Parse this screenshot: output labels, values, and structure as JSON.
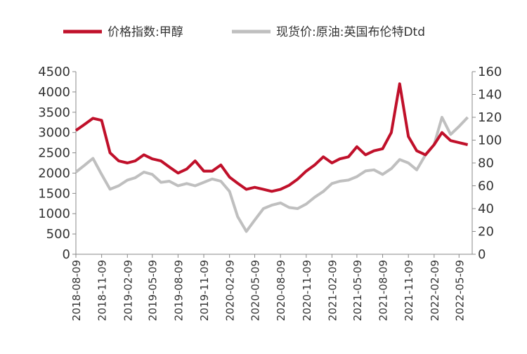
{
  "chart_data": {
    "type": "line",
    "series_names_note_free": null,
    "x": [
      "2018-08-09",
      "2018-09-09",
      "2018-10-09",
      "2018-11-09",
      "2018-12-09",
      "2019-01-09",
      "2019-02-09",
      "2019-03-09",
      "2019-04-09",
      "2019-05-09",
      "2019-06-09",
      "2019-07-09",
      "2019-08-09",
      "2019-09-09",
      "2019-10-09",
      "2019-11-09",
      "2019-12-09",
      "2020-01-09",
      "2020-02-09",
      "2020-03-09",
      "2020-04-09",
      "2020-05-09",
      "2020-06-09",
      "2020-07-09",
      "2020-08-09",
      "2020-09-09",
      "2020-10-09",
      "2020-11-09",
      "2020-12-09",
      "2021-01-09",
      "2021-02-09",
      "2021-03-09",
      "2021-04-09",
      "2021-05-09",
      "2021-06-09",
      "2021-07-09",
      "2021-08-09",
      "2021-09-09",
      "2021-10-09",
      "2021-11-09",
      "2021-12-09",
      "2022-01-09",
      "2022-02-09",
      "2022-03-09",
      "2022-04-09",
      "2022-05-09",
      "2022-06-09"
    ],
    "series": [
      {
        "name": "价格指数:甲醇",
        "color": "#c0102a",
        "axis": "y",
        "values": [
          3050,
          3200,
          3350,
          3300,
          2500,
          2300,
          2250,
          2300,
          2450,
          2350,
          2300,
          2150,
          2000,
          2100,
          2300,
          2050,
          2050,
          2200,
          1900,
          1750,
          1600,
          1650,
          1600,
          1550,
          1600,
          1700,
          1850,
          2050,
          2200,
          2400,
          2250,
          2350,
          2400,
          2650,
          2450,
          2550,
          2600,
          3000,
          4200,
          2900,
          2550,
          2450,
          2700,
          3000,
          2800,
          2750,
          2700
        ]
      },
      {
        "name": "现货价:原油:英国布伦特Dtd",
        "color": "#bfbfbf",
        "axis": "y2",
        "values": [
          72,
          78,
          84,
          70,
          57,
          60,
          65,
          67,
          72,
          70,
          63,
          64,
          60,
          62,
          60,
          63,
          66,
          64,
          55,
          33,
          20,
          30,
          40,
          43,
          45,
          41,
          40,
          44,
          50,
          55,
          62,
          64,
          65,
          68,
          73,
          74,
          70,
          75,
          83,
          80,
          74,
          87,
          96,
          120,
          105,
          112,
          120
        ]
      }
    ],
    "xlim": [
      "2018-08-09",
      "2022-06-25"
    ],
    "xticks": [
      "2018-08-09",
      "2018-11-09",
      "2019-02-09",
      "2019-05-09",
      "2019-08-09",
      "2019-11-09",
      "2020-02-09",
      "2020-05-09",
      "2020-08-09",
      "2020-11-09",
      "2021-02-09",
      "2021-05-09",
      "2021-08-09",
      "2021-11-09",
      "2022-02-09",
      "2022-05-09"
    ],
    "ylim": [
      0,
      4500
    ],
    "yticks": [
      0,
      500,
      1000,
      1500,
      2000,
      2500,
      3000,
      3500,
      4000,
      4500
    ],
    "y2lim": [
      0,
      160
    ],
    "y2ticks": [
      0,
      20,
      40,
      60,
      80,
      100,
      120,
      140,
      160
    ]
  }
}
